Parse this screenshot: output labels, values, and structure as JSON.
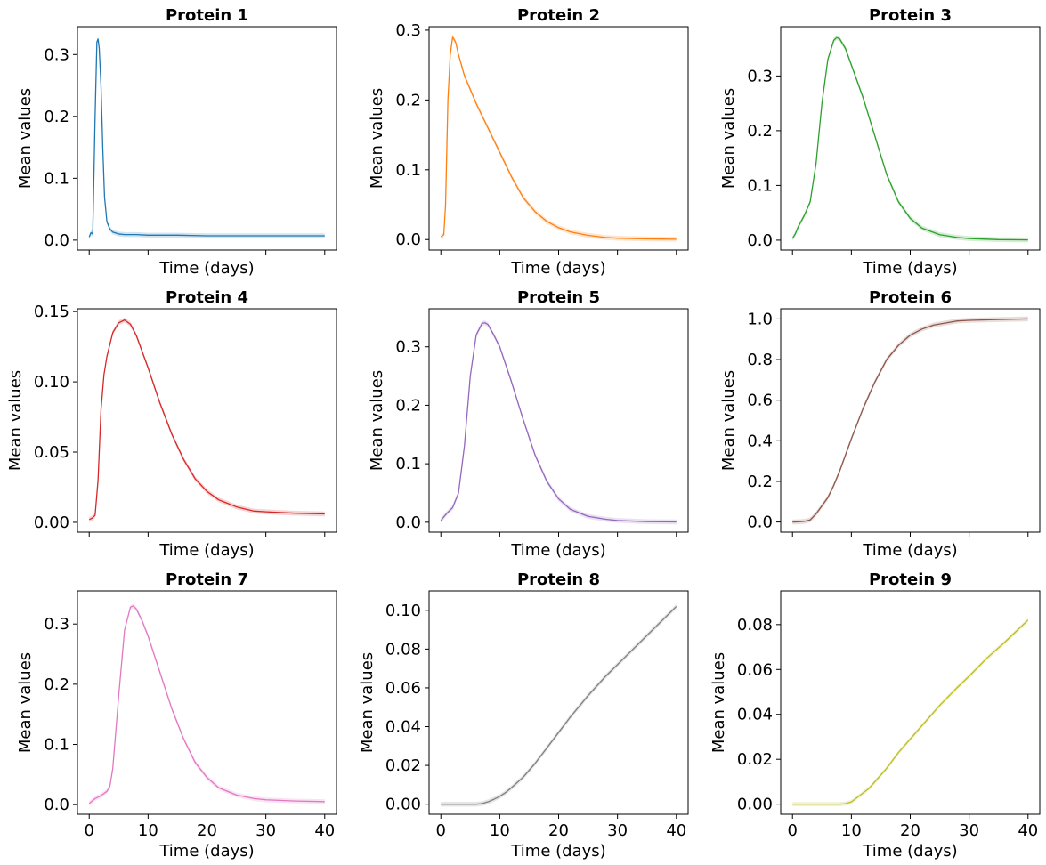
{
  "chart_data": [
    {
      "type": "line",
      "title": "Protein 1",
      "xlabel": "Time (days)",
      "ylabel": "Mean values",
      "color": "#1f77b4",
      "xlim": [
        -2,
        42
      ],
      "ylim": [
        -0.016,
        0.345
      ],
      "x_tick_labels_shown": false,
      "xticks": [
        0,
        10,
        20,
        30,
        40
      ],
      "yticks": [
        0.0,
        0.1,
        0.2,
        0.3
      ],
      "ytick_labels": [
        "0.0",
        "0.1",
        "0.2",
        "0.3"
      ],
      "x": [
        0,
        0.3,
        0.6,
        1.0,
        1.3,
        1.5,
        1.7,
        2.0,
        2.3,
        2.6,
        3.0,
        3.5,
        4,
        5,
        6,
        8,
        10,
        15,
        20,
        25,
        30,
        35,
        40
      ],
      "y": [
        0.005,
        0.012,
        0.01,
        0.2,
        0.32,
        0.325,
        0.31,
        0.25,
        0.15,
        0.07,
        0.03,
        0.018,
        0.013,
        0.01,
        0.009,
        0.009,
        0.008,
        0.008,
        0.007,
        0.007,
        0.007,
        0.007,
        0.007
      ]
    },
    {
      "type": "line",
      "title": "Protein 2",
      "xlabel": "Time (days)",
      "ylabel": "Mean values",
      "color": "#ff7f0e",
      "xlim": [
        -2,
        42
      ],
      "ylim": [
        -0.015,
        0.305
      ],
      "x_tick_labels_shown": false,
      "xticks": [
        0,
        10,
        20,
        30,
        40
      ],
      "yticks": [
        0.0,
        0.1,
        0.2,
        0.3
      ],
      "ytick_labels": [
        "0.0",
        "0.1",
        "0.2",
        "0.3"
      ],
      "x": [
        0,
        0.5,
        0.8,
        1.2,
        1.6,
        2.0,
        2.5,
        3,
        4,
        6,
        8,
        10,
        12,
        14,
        16,
        18,
        20,
        22,
        25,
        28,
        30,
        35,
        40
      ],
      "y": [
        0.004,
        0.007,
        0.05,
        0.2,
        0.265,
        0.29,
        0.283,
        0.265,
        0.235,
        0.195,
        0.16,
        0.125,
        0.09,
        0.06,
        0.04,
        0.026,
        0.017,
        0.011,
        0.006,
        0.003,
        0.002,
        0.001,
        0.0005
      ]
    },
    {
      "type": "line",
      "title": "Protein 3",
      "xlabel": "Time (days)",
      "ylabel": "Mean values",
      "color": "#2ca02c",
      "xlim": [
        -2,
        42
      ],
      "ylim": [
        -0.018,
        0.39
      ],
      "x_tick_labels_shown": false,
      "xticks": [
        0,
        10,
        20,
        30,
        40
      ],
      "yticks": [
        0.0,
        0.1,
        0.2,
        0.3
      ],
      "ytick_labels": [
        "0.0",
        "0.1",
        "0.2",
        "0.3"
      ],
      "x": [
        0,
        0.5,
        1,
        1.5,
        2,
        3,
        4,
        5,
        6,
        7,
        7.5,
        8,
        9,
        10,
        11,
        12,
        14,
        16,
        18,
        20,
        22,
        25,
        28,
        30,
        35,
        40
      ],
      "y": [
        0.003,
        0.012,
        0.025,
        0.035,
        0.045,
        0.07,
        0.14,
        0.25,
        0.33,
        0.365,
        0.37,
        0.368,
        0.35,
        0.32,
        0.29,
        0.26,
        0.19,
        0.12,
        0.07,
        0.04,
        0.022,
        0.01,
        0.005,
        0.003,
        0.001,
        0.0005
      ]
    },
    {
      "type": "line",
      "title": "Protein 4",
      "xlabel": "Time (days)",
      "ylabel": "Mean values",
      "color": "#d62728",
      "xlim": [
        -2,
        42
      ],
      "ylim": [
        -0.007,
        0.152
      ],
      "x_tick_labels_shown": false,
      "xticks": [
        0,
        10,
        20,
        30,
        40
      ],
      "yticks": [
        0.0,
        0.05,
        0.1,
        0.15
      ],
      "ytick_labels": [
        "0.00",
        "0.05",
        "0.10",
        "0.15"
      ],
      "x": [
        0,
        0.5,
        1,
        1.5,
        2,
        2.5,
        3,
        4,
        5,
        6,
        7,
        8,
        10,
        12,
        14,
        16,
        18,
        20,
        22,
        25,
        28,
        30,
        35,
        40
      ],
      "y": [
        0.002,
        0.003,
        0.005,
        0.03,
        0.08,
        0.105,
        0.118,
        0.135,
        0.142,
        0.144,
        0.141,
        0.133,
        0.11,
        0.085,
        0.063,
        0.045,
        0.031,
        0.022,
        0.016,
        0.011,
        0.008,
        0.0075,
        0.0065,
        0.006
      ]
    },
    {
      "type": "line",
      "title": "Protein 5",
      "xlabel": "Time (days)",
      "ylabel": "Mean values",
      "color": "#9467bd",
      "xlim": [
        -2,
        42
      ],
      "ylim": [
        -0.017,
        0.365
      ],
      "x_tick_labels_shown": false,
      "xticks": [
        0,
        10,
        20,
        30,
        40
      ],
      "yticks": [
        0.0,
        0.1,
        0.2,
        0.3
      ],
      "ytick_labels": [
        "0.0",
        "0.1",
        "0.2",
        "0.3"
      ],
      "x": [
        0,
        1,
        2,
        3,
        4,
        5,
        6,
        7,
        7.5,
        8,
        9,
        10,
        12,
        14,
        16,
        18,
        20,
        22,
        25,
        28,
        30,
        35,
        40
      ],
      "y": [
        0.003,
        0.015,
        0.025,
        0.05,
        0.13,
        0.25,
        0.32,
        0.34,
        0.341,
        0.338,
        0.32,
        0.3,
        0.24,
        0.175,
        0.115,
        0.07,
        0.04,
        0.022,
        0.01,
        0.005,
        0.003,
        0.001,
        0.0005
      ]
    },
    {
      "type": "line",
      "title": "Protein 6",
      "xlabel": "Time (days)",
      "ylabel": "Mean values",
      "color": "#8c564b",
      "xlim": [
        -2,
        42
      ],
      "ylim": [
        -0.05,
        1.05
      ],
      "x_tick_labels_shown": false,
      "xticks": [
        0,
        10,
        20,
        30,
        40
      ],
      "yticks": [
        0.0,
        0.2,
        0.4,
        0.6,
        0.8,
        1.0
      ],
      "ytick_labels": [
        "0.0",
        "0.2",
        "0.4",
        "0.6",
        "0.8",
        "1.0"
      ],
      "x": [
        0,
        1,
        2,
        3,
        4,
        5,
        6,
        7,
        8,
        9,
        10,
        12,
        14,
        16,
        18,
        20,
        22,
        24,
        26,
        28,
        30,
        35,
        40
      ],
      "y": [
        0.0,
        0.001,
        0.003,
        0.01,
        0.04,
        0.08,
        0.12,
        0.18,
        0.25,
        0.33,
        0.41,
        0.56,
        0.69,
        0.8,
        0.87,
        0.92,
        0.95,
        0.97,
        0.98,
        0.99,
        0.993,
        0.997,
        1.0
      ]
    },
    {
      "type": "line",
      "title": "Protein 7",
      "xlabel": "Time (days)",
      "ylabel": "Mean values",
      "color": "#e377c2",
      "xlim": [
        -2,
        42
      ],
      "ylim": [
        -0.016,
        0.355
      ],
      "x_tick_labels_shown": true,
      "xticks": [
        0,
        10,
        20,
        30,
        40
      ],
      "xtick_labels": [
        "0",
        "10",
        "20",
        "30",
        "40"
      ],
      "yticks": [
        0.0,
        0.1,
        0.2,
        0.3
      ],
      "ytick_labels": [
        "0.0",
        "0.1",
        "0.2",
        "0.3"
      ],
      "x": [
        0,
        1,
        2,
        3,
        3.5,
        4,
        5,
        6,
        7,
        7.5,
        8,
        9,
        10,
        12,
        14,
        16,
        18,
        20,
        22,
        25,
        28,
        30,
        35,
        40
      ],
      "y": [
        0.002,
        0.01,
        0.015,
        0.022,
        0.03,
        0.06,
        0.18,
        0.29,
        0.328,
        0.33,
        0.325,
        0.305,
        0.28,
        0.22,
        0.16,
        0.11,
        0.07,
        0.045,
        0.028,
        0.016,
        0.01,
        0.008,
        0.006,
        0.005
      ]
    },
    {
      "type": "line",
      "title": "Protein 8",
      "xlabel": "Time (days)",
      "ylabel": "Mean values",
      "color": "#7f7f7f",
      "xlim": [
        -2,
        42
      ],
      "ylim": [
        -0.0052,
        0.11
      ],
      "x_tick_labels_shown": true,
      "xticks": [
        0,
        10,
        20,
        30,
        40
      ],
      "xtick_labels": [
        "0",
        "10",
        "20",
        "30",
        "40"
      ],
      "yticks": [
        0.0,
        0.02,
        0.04,
        0.06,
        0.08,
        0.1
      ],
      "ytick_labels": [
        "0.00",
        "0.02",
        "0.04",
        "0.06",
        "0.08",
        "0.10"
      ],
      "x": [
        0,
        2,
        4,
        6,
        7,
        8,
        9,
        10,
        11,
        12,
        14,
        16,
        18,
        20,
        22,
        25,
        28,
        30,
        33,
        36,
        40
      ],
      "y": [
        0.0,
        0.0,
        0.0,
        0.0,
        0.0003,
        0.0012,
        0.0025,
        0.004,
        0.006,
        0.0085,
        0.014,
        0.021,
        0.029,
        0.037,
        0.045,
        0.056,
        0.066,
        0.072,
        0.081,
        0.09,
        0.102
      ]
    },
    {
      "type": "line",
      "title": "Protein 9",
      "xlabel": "Time (days)",
      "ylabel": "Mean values",
      "color": "#bcbd22",
      "xlim": [
        -2,
        42
      ],
      "ylim": [
        -0.0045,
        0.095
      ],
      "x_tick_labels_shown": true,
      "xticks": [
        0,
        10,
        20,
        30,
        40
      ],
      "xtick_labels": [
        "0",
        "10",
        "20",
        "30",
        "40"
      ],
      "yticks": [
        0.0,
        0.02,
        0.04,
        0.06,
        0.08
      ],
      "ytick_labels": [
        "0.00",
        "0.02",
        "0.04",
        "0.06",
        "0.08"
      ],
      "x": [
        0,
        2,
        4,
        6,
        8,
        9,
        10,
        11,
        12,
        13,
        14,
        16,
        18,
        20,
        22,
        25,
        28,
        30,
        33,
        36,
        40
      ],
      "y": [
        0.0,
        0.0,
        0.0,
        0.0,
        0.0,
        0.0002,
        0.001,
        0.003,
        0.005,
        0.007,
        0.01,
        0.016,
        0.023,
        0.029,
        0.035,
        0.044,
        0.052,
        0.057,
        0.065,
        0.072,
        0.082
      ]
    }
  ]
}
